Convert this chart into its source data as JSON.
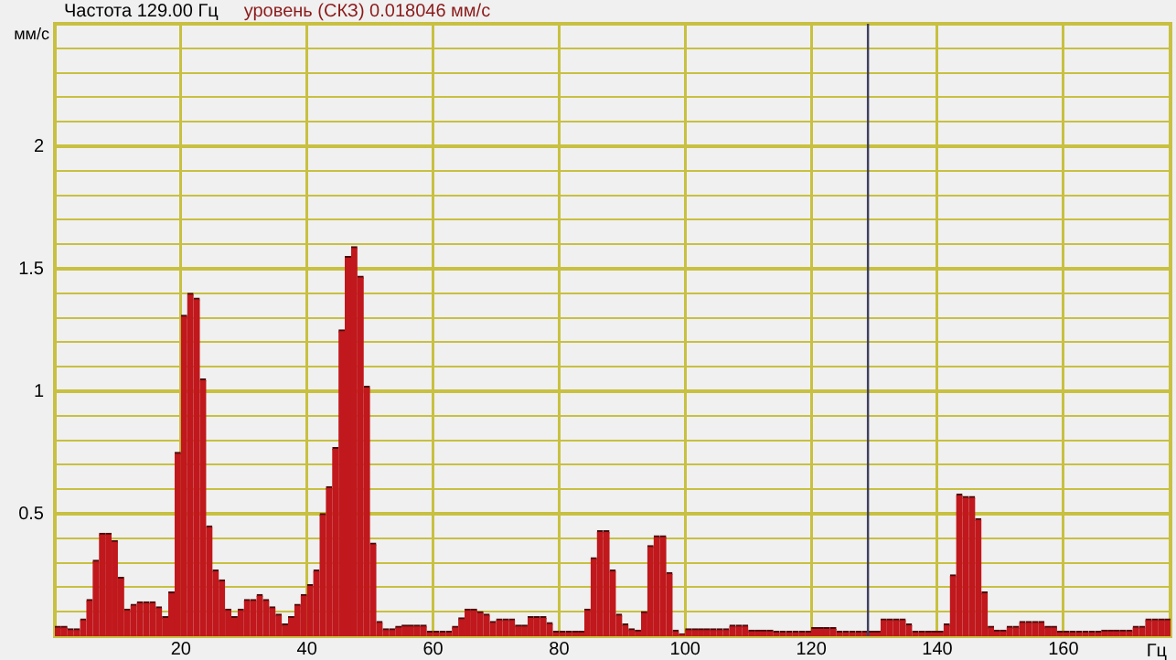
{
  "chart_data": {
    "type": "histogram",
    "title": "Частота 129.00 Гц",
    "subtitle": "уровень (СКЗ) 0.018046 мм/с",
    "xlabel": "Гц",
    "ylabel": "мм/с",
    "color": "#c0181c",
    "bins": [
      0,
      1,
      2,
      3,
      4,
      5,
      6,
      7,
      8,
      9,
      10,
      11,
      12,
      13,
      14,
      15,
      16,
      17,
      18,
      19,
      20,
      21,
      22,
      23,
      24,
      25,
      26,
      27,
      28,
      29,
      30,
      31,
      32,
      33,
      34,
      35,
      36,
      37,
      38,
      39,
      40,
      41,
      42,
      43,
      44,
      45,
      46,
      47,
      48,
      49,
      50,
      51,
      52,
      53,
      54,
      55,
      56,
      57,
      58,
      59,
      60,
      61,
      62,
      63,
      64,
      65,
      66,
      67,
      68,
      69,
      70,
      71,
      72,
      73,
      74,
      75,
      76,
      77,
      78,
      79,
      80,
      81,
      82,
      83,
      84,
      85,
      86,
      87,
      88,
      89,
      90,
      91,
      92,
      93,
      94,
      95,
      96,
      97,
      98,
      99,
      100,
      101,
      102,
      103,
      104,
      105,
      106,
      107,
      108,
      109,
      110,
      111,
      112,
      113,
      114,
      115,
      116,
      117,
      118,
      119,
      120,
      121,
      122,
      123,
      124,
      125,
      126,
      127,
      128,
      129,
      130,
      131,
      132,
      133,
      134,
      135,
      136,
      137,
      138,
      139,
      140,
      141,
      142,
      143,
      144,
      145,
      146,
      147,
      148,
      149,
      150,
      151,
      152,
      153,
      154,
      155,
      156,
      157,
      158,
      159,
      160,
      161,
      162,
      163,
      164,
      165,
      166,
      167,
      168,
      169,
      170,
      171,
      172,
      173,
      174,
      175,
      176,
      177
    ],
    "values": [
      0.04,
      0.04,
      0.03,
      0.03,
      0.07,
      0.15,
      0.31,
      0.42,
      0.42,
      0.39,
      0.24,
      0.11,
      0.13,
      0.14,
      0.14,
      0.14,
      0.12,
      0.08,
      0.18,
      0.75,
      1.31,
      1.4,
      1.38,
      1.05,
      0.45,
      0.27,
      0.23,
      0.11,
      0.08,
      0.11,
      0.15,
      0.15,
      0.17,
      0.15,
      0.12,
      0.09,
      0.05,
      0.08,
      0.13,
      0.17,
      0.21,
      0.27,
      0.5,
      0.61,
      0.77,
      1.25,
      1.55,
      1.59,
      1.47,
      1.02,
      0.38,
      0.06,
      0.03,
      0.03,
      0.04,
      0.045,
      0.045,
      0.045,
      0.045,
      0.02,
      0.02,
      0.02,
      0.02,
      0.04,
      0.075,
      0.11,
      0.11,
      0.1,
      0.09,
      0.06,
      0.07,
      0.07,
      0.07,
      0.045,
      0.045,
      0.08,
      0.08,
      0.08,
      0.055,
      0.02,
      0.02,
      0.02,
      0.02,
      0.02,
      0.11,
      0.32,
      0.43,
      0.43,
      0.27,
      0.09,
      0.05,
      0.03,
      0.025,
      0.1,
      0.37,
      0.41,
      0.41,
      0.26,
      0.025,
      0.01,
      0.03,
      0.03,
      0.03,
      0.03,
      0.03,
      0.03,
      0.03,
      0.045,
      0.045,
      0.045,
      0.025,
      0.025,
      0.025,
      0.025,
      0.02,
      0.02,
      0.02,
      0.02,
      0.02,
      0.02,
      0.035,
      0.035,
      0.035,
      0.035,
      0.02,
      0.02,
      0.02,
      0.02,
      0.02,
      0.02,
      0.02,
      0.07,
      0.07,
      0.07,
      0.07,
      0.05,
      0.02,
      0.02,
      0.02,
      0.02,
      0.02,
      0.05,
      0.25,
      0.58,
      0.57,
      0.57,
      0.48,
      0.18,
      0.04,
      0.025,
      0.025,
      0.04,
      0.04,
      0.06,
      0.06,
      0.06,
      0.06,
      0.04,
      0.04,
      0.02,
      0.02,
      0.02,
      0.02,
      0.02,
      0.02,
      0.02,
      0.025,
      0.025,
      0.025,
      0.025,
      0.025,
      0.04,
      0.04,
      0.07,
      0.07,
      0.07,
      0.07
    ],
    "xlim": [
      0,
      177
    ],
    "xticks": [
      20,
      40,
      60,
      80,
      100,
      120,
      140,
      160
    ],
    "ylim": [
      0,
      2.5
    ],
    "yticks": [
      {
        "value": 0.1,
        "label": null
      },
      {
        "value": 0.2,
        "label": null
      },
      {
        "value": 0.3,
        "label": null
      },
      {
        "value": 0.4,
        "label": null
      },
      0.5,
      {
        "value": 0.6,
        "label": null
      },
      {
        "value": 0.7,
        "label": null
      },
      {
        "value": 0.8,
        "label": null
      },
      {
        "value": 0.9,
        "label": null
      },
      1,
      {
        "value": 1.1,
        "label": null
      },
      {
        "value": 1.2,
        "label": null
      },
      {
        "value": 1.3,
        "label": null
      },
      {
        "value": 1.4,
        "label": null
      },
      1.5,
      {
        "value": 1.6,
        "label": null
      },
      {
        "value": 1.7,
        "label": null
      },
      {
        "value": 1.8,
        "label": null
      },
      {
        "value": 1.9,
        "label": null
      },
      2,
      {
        "value": 2.1,
        "label": null
      },
      {
        "value": 2.2,
        "label": null
      },
      {
        "value": 2.3,
        "label": null
      },
      {
        "value": 2.4,
        "label": null
      }
    ],
    "ref_lines": [
      {
        "axis": "x",
        "value": 129,
        "color": "#404060"
      }
    ],
    "grid": true,
    "legend": false
  }
}
